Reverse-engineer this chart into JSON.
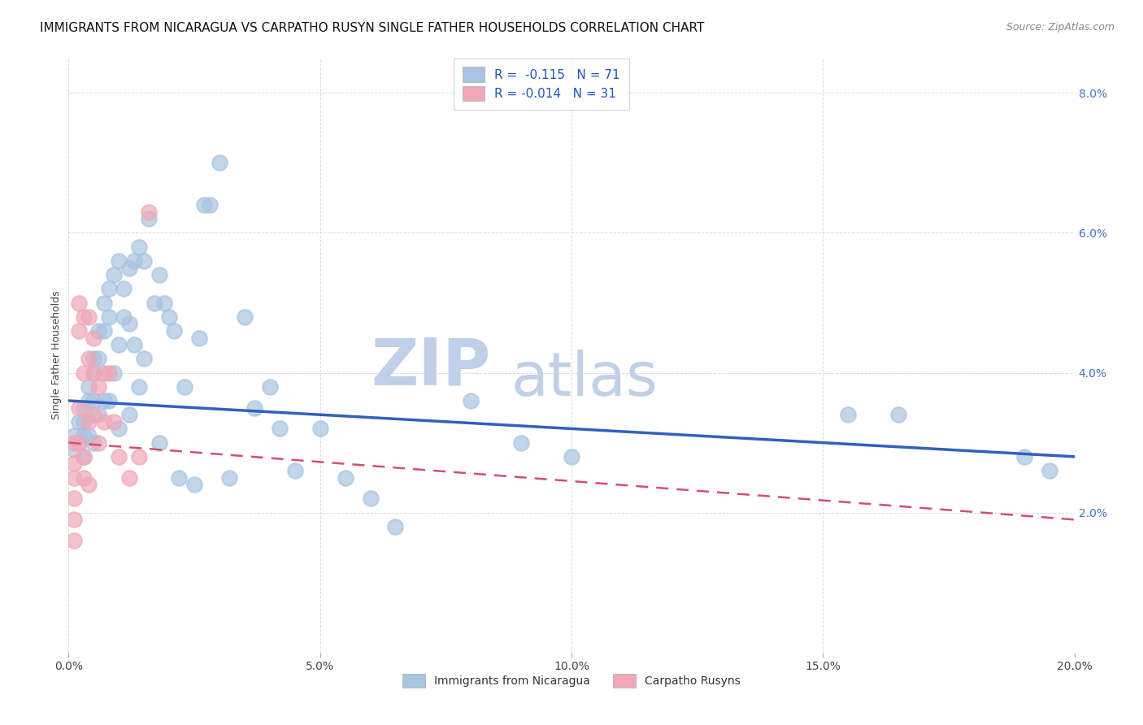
{
  "title": "IMMIGRANTS FROM NICARAGUA VS CARPATHO RUSYN SINGLE FATHER HOUSEHOLDS CORRELATION CHART",
  "source": "Source: ZipAtlas.com",
  "xlabel_ticks": [
    "0.0%",
    "5.0%",
    "10.0%",
    "15.0%",
    "20.0%"
  ],
  "ylabel_ticks": [
    "2.0%",
    "4.0%",
    "6.0%",
    "8.0%"
  ],
  "xlim": [
    0.0,
    0.2
  ],
  "ylim": [
    0.0,
    0.085
  ],
  "ylabel": "Single Father Households",
  "legend1_label": "R =  -0.115   N = 71",
  "legend2_label": "R = -0.014   N = 31",
  "legend_bottom_label1": "Immigrants from Nicaragua",
  "legend_bottom_label2": "Carpatho Rusyns",
  "blue_scatter_x": [
    0.001,
    0.001,
    0.002,
    0.002,
    0.003,
    0.003,
    0.003,
    0.003,
    0.004,
    0.004,
    0.004,
    0.005,
    0.005,
    0.005,
    0.005,
    0.006,
    0.006,
    0.006,
    0.007,
    0.007,
    0.007,
    0.008,
    0.008,
    0.008,
    0.009,
    0.009,
    0.01,
    0.01,
    0.01,
    0.011,
    0.011,
    0.012,
    0.012,
    0.012,
    0.013,
    0.013,
    0.014,
    0.014,
    0.015,
    0.015,
    0.016,
    0.017,
    0.018,
    0.018,
    0.019,
    0.02,
    0.021,
    0.022,
    0.023,
    0.025,
    0.026,
    0.027,
    0.028,
    0.03,
    0.032,
    0.035,
    0.037,
    0.04,
    0.042,
    0.045,
    0.05,
    0.055,
    0.06,
    0.065,
    0.08,
    0.09,
    0.1,
    0.155,
    0.165,
    0.19,
    0.195
  ],
  "blue_scatter_y": [
    0.031,
    0.029,
    0.033,
    0.03,
    0.035,
    0.033,
    0.031,
    0.028,
    0.038,
    0.036,
    0.031,
    0.042,
    0.04,
    0.036,
    0.03,
    0.046,
    0.042,
    0.034,
    0.05,
    0.046,
    0.036,
    0.052,
    0.048,
    0.036,
    0.054,
    0.04,
    0.056,
    0.044,
    0.032,
    0.052,
    0.048,
    0.055,
    0.047,
    0.034,
    0.056,
    0.044,
    0.058,
    0.038,
    0.056,
    0.042,
    0.062,
    0.05,
    0.054,
    0.03,
    0.05,
    0.048,
    0.046,
    0.025,
    0.038,
    0.024,
    0.045,
    0.064,
    0.064,
    0.07,
    0.025,
    0.048,
    0.035,
    0.038,
    0.032,
    0.026,
    0.032,
    0.025,
    0.022,
    0.018,
    0.036,
    0.03,
    0.028,
    0.034,
    0.034,
    0.028,
    0.026
  ],
  "pink_scatter_x": [
    0.001,
    0.001,
    0.001,
    0.001,
    0.001,
    0.001,
    0.002,
    0.002,
    0.002,
    0.002,
    0.003,
    0.003,
    0.003,
    0.003,
    0.004,
    0.004,
    0.004,
    0.004,
    0.005,
    0.005,
    0.005,
    0.006,
    0.006,
    0.007,
    0.007,
    0.008,
    0.009,
    0.01,
    0.012,
    0.014,
    0.016
  ],
  "pink_scatter_y": [
    0.03,
    0.027,
    0.025,
    0.022,
    0.019,
    0.016,
    0.05,
    0.046,
    0.035,
    0.03,
    0.048,
    0.04,
    0.028,
    0.025,
    0.048,
    0.042,
    0.033,
    0.024,
    0.045,
    0.04,
    0.034,
    0.038,
    0.03,
    0.04,
    0.033,
    0.04,
    0.033,
    0.028,
    0.025,
    0.028,
    0.063
  ],
  "blue_line_x": [
    0.0,
    0.2
  ],
  "blue_line_y": [
    0.036,
    0.028
  ],
  "pink_line_x": [
    0.0,
    0.2
  ],
  "pink_line_y": [
    0.03,
    0.019
  ],
  "scatter_blue_color": "#a8c4e0",
  "scatter_pink_color": "#f0a8b8",
  "line_blue_color": "#3060c0",
  "line_pink_color": "#d05070",
  "watermark_zip_color": "#c0d0e8",
  "watermark_atlas_color": "#c0d0e8",
  "title_fontsize": 11,
  "source_fontsize": 9,
  "axis_label_fontsize": 9,
  "background_color": "#ffffff",
  "grid_color": "#cccccc"
}
